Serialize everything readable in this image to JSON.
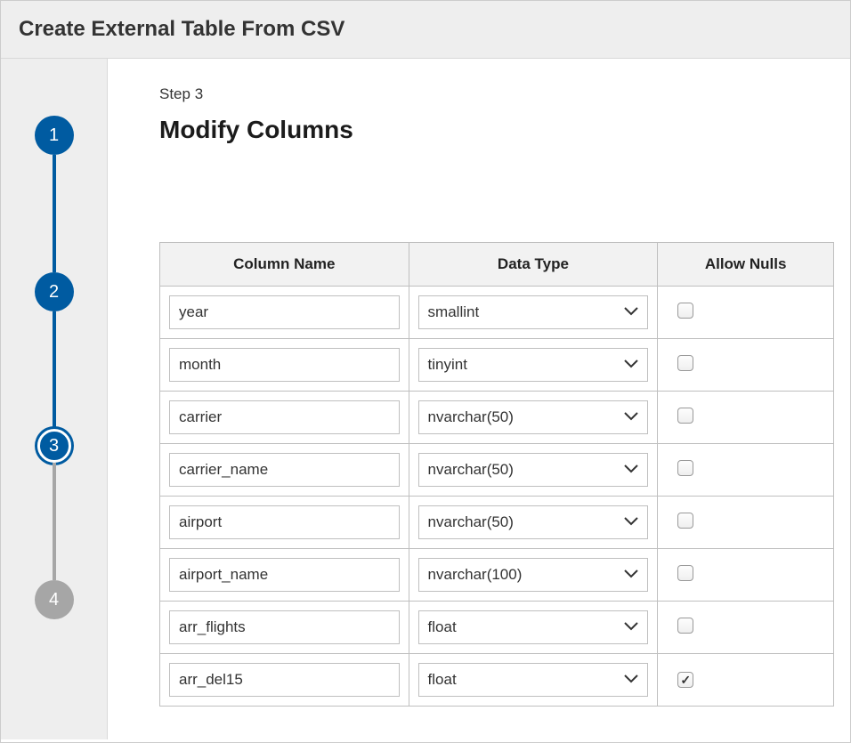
{
  "header": {
    "title": "Create External Table From CSV"
  },
  "stepper": {
    "steps": [
      {
        "num": "1",
        "state": "done"
      },
      {
        "num": "2",
        "state": "done"
      },
      {
        "num": "3",
        "state": "current"
      },
      {
        "num": "4",
        "state": "future"
      }
    ],
    "colors": {
      "done": "#005ba1",
      "current": "#005ba1",
      "future": "#a6a6a6"
    }
  },
  "main": {
    "step_label": "Step 3",
    "title": "Modify Columns"
  },
  "table": {
    "headers": {
      "name": "Column Name",
      "type": "Data Type",
      "nulls": "Allow Nulls"
    },
    "rows": [
      {
        "name": "year",
        "type": "smallint",
        "allow_nulls": false
      },
      {
        "name": "month",
        "type": "tinyint",
        "allow_nulls": false
      },
      {
        "name": "carrier",
        "type": "nvarchar(50)",
        "allow_nulls": false
      },
      {
        "name": "carrier_name",
        "type": "nvarchar(50)",
        "allow_nulls": false
      },
      {
        "name": "airport",
        "type": "nvarchar(50)",
        "allow_nulls": false
      },
      {
        "name": "airport_name",
        "type": "nvarchar(100)",
        "allow_nulls": false
      },
      {
        "name": "arr_flights",
        "type": "float",
        "allow_nulls": false
      },
      {
        "name": "arr_del15",
        "type": "float",
        "allow_nulls": true
      }
    ]
  }
}
